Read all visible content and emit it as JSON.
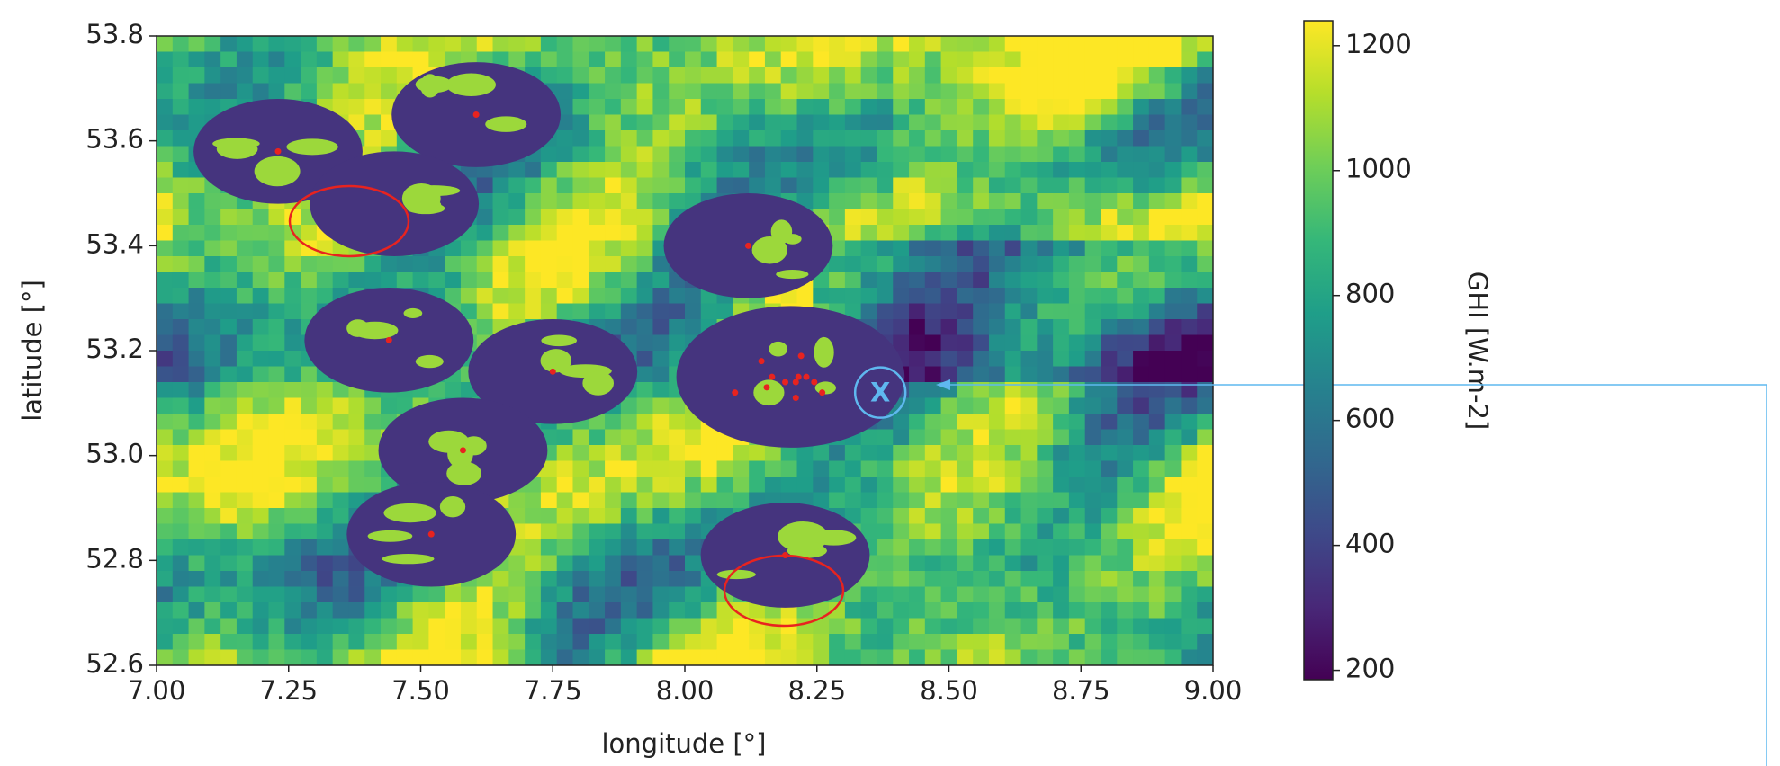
{
  "chart_data": {
    "type": "scatter",
    "xlabel": "longitude [°]",
    "ylabel": "latitude [°]",
    "xlim": [
      7.0,
      9.0
    ],
    "xticks": [
      {
        "value": 7.0,
        "label": "7.00"
      },
      {
        "value": 7.25,
        "label": "7.25"
      },
      {
        "value": 7.5,
        "label": "7.50"
      },
      {
        "value": 7.75,
        "label": "7.75"
      },
      {
        "value": 8.0,
        "label": "8.00"
      },
      {
        "value": 8.25,
        "label": "8.25"
      },
      {
        "value": 8.5,
        "label": "8.50"
      },
      {
        "value": 8.75,
        "label": "8.75"
      },
      {
        "value": 9.0,
        "label": "9.00"
      }
    ],
    "ylim": [
      52.6,
      53.8
    ],
    "yticks": [
      {
        "value": 52.6,
        "label": "52.6"
      },
      {
        "value": 52.8,
        "label": "52.8"
      },
      {
        "value": 53.0,
        "label": "53.0"
      },
      {
        "value": 53.2,
        "label": "53.2"
      },
      {
        "value": 53.4,
        "label": "53.4"
      },
      {
        "value": 53.6,
        "label": "53.6"
      },
      {
        "value": 53.8,
        "label": "53.8"
      }
    ],
    "x": [
      7.23,
      7.605,
      8.12,
      7.44,
      7.75,
      7.58,
      7.52,
      8.19,
      8.145,
      8.22,
      8.165,
      8.19,
      8.215,
      8.23,
      8.245,
      8.26,
      8.21,
      8.095,
      8.155,
      8.21
    ],
    "y": [
      53.58,
      53.65,
      53.4,
      53.22,
      53.16,
      53.01,
      52.85,
      52.81,
      53.18,
      53.19,
      53.15,
      53.14,
      53.15,
      53.15,
      53.14,
      53.12,
      53.11,
      53.12,
      53.13,
      53.14
    ],
    "color": "#e8231f",
    "footprints": {
      "x": [
        7.23,
        7.605,
        7.45,
        8.12,
        7.44,
        7.75,
        7.58,
        7.52,
        8.19,
        8.2
      ],
      "y": [
        53.58,
        53.65,
        53.48,
        53.4,
        53.22,
        53.16,
        53.01,
        52.85,
        52.81,
        53.15
      ]
    },
    "annotation": {
      "text": "X",
      "x": 8.37,
      "y": 53.12
    },
    "colorbar": {
      "label": "GHI [W.m-2]",
      "lim": [
        185,
        1240
      ],
      "ticks": [
        200,
        400,
        600,
        800,
        1000,
        1200
      ],
      "colors": [
        "#440154",
        "#482878",
        "#3e4989",
        "#31688e",
        "#26828e",
        "#1f9e89",
        "#35b779",
        "#6ece58",
        "#b5de2b",
        "#fde725"
      ]
    }
  }
}
